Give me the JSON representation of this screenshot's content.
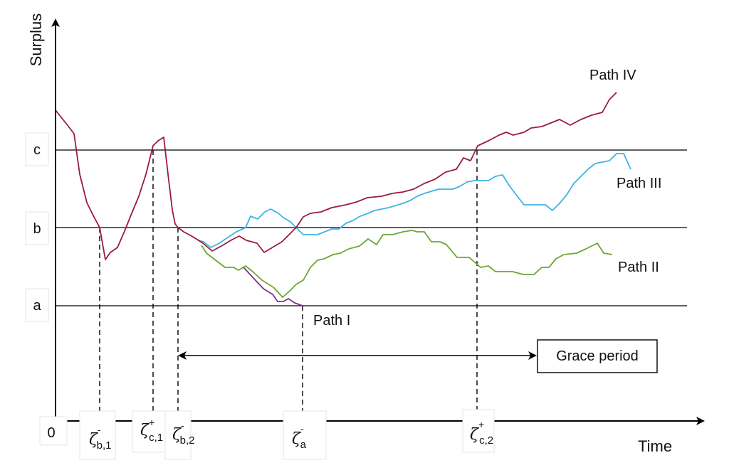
{
  "axes": {
    "y_title": "Surplus",
    "x_title": "Time",
    "origin": "0"
  },
  "levels": [
    {
      "label": "a"
    },
    {
      "label": "b"
    },
    {
      "label": "c"
    }
  ],
  "stopping_times": [
    {
      "sym": "ζ",
      "sup": "-",
      "sub": "b,1"
    },
    {
      "sym": "ζ",
      "sup": "+",
      "sub": "c,1"
    },
    {
      "sym": "ζ",
      "sup": "-",
      "sub": "b,2"
    },
    {
      "sym": "ζ",
      "sup": "-",
      "sub": "a"
    },
    {
      "sym": "ζ",
      "sup": "+",
      "sub": "c,2"
    }
  ],
  "paths": [
    {
      "label": "Path I",
      "color": "#7b2f91"
    },
    {
      "label": "Path II",
      "color": "#6aa832"
    },
    {
      "label": "Path III",
      "color": "#3fb3e6"
    },
    {
      "label": "Path IV",
      "color": "#9b1b3a"
    }
  ],
  "grace_period": "Grace period"
}
